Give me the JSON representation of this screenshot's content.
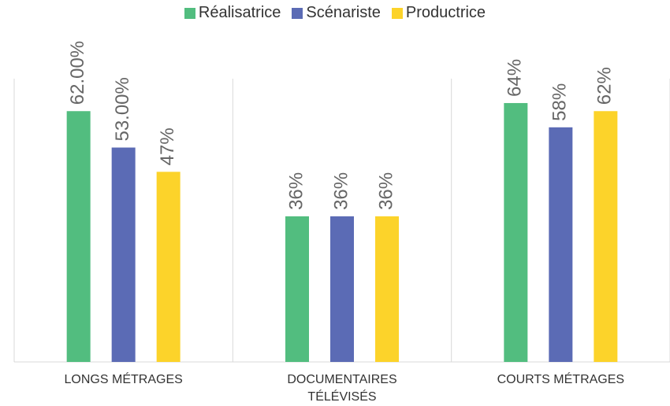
{
  "chart_data": {
    "type": "bar",
    "categories": [
      "LONGS MÉTRAGES",
      "DOCUMENTAIRES TÉLÉVISÉS",
      "COURTS MÉTRAGES"
    ],
    "series": [
      {
        "name": "Réalisatrice",
        "color": "#52bd7f",
        "values": [
          62,
          36,
          64
        ],
        "value_labels": [
          "62.00%",
          "36%",
          "64%"
        ]
      },
      {
        "name": "Scénariste",
        "color": "#5b6bb5",
        "values": [
          53,
          36,
          58
        ],
        "value_labels": [
          "53.00%",
          "36%",
          "58%"
        ]
      },
      {
        "name": "Productrice",
        "color": "#fcd32a",
        "values": [
          47,
          36,
          62
        ],
        "value_labels": [
          "47%",
          "36%",
          "62%"
        ]
      }
    ],
    "ylim": [
      0,
      85
    ],
    "legend": "top"
  }
}
